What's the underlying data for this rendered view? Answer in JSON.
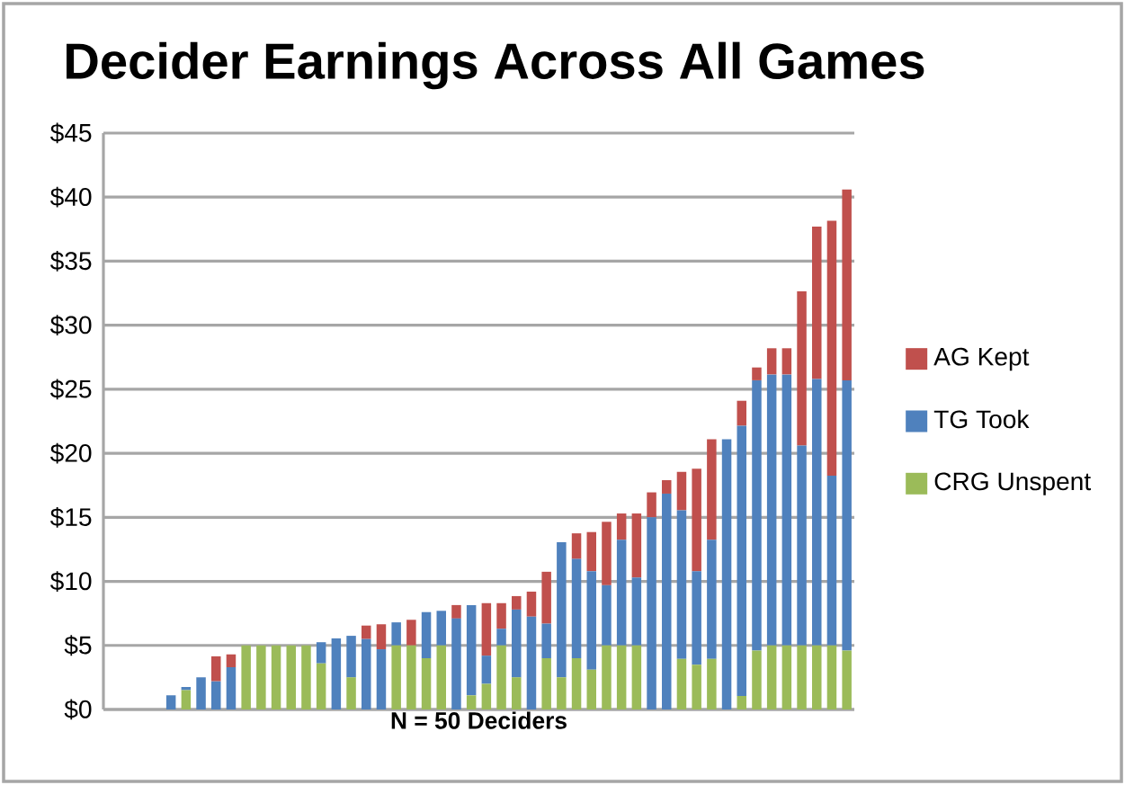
{
  "chart_data": {
    "type": "bar",
    "title": "Decider Earnings Across All Games",
    "xlabel": "N = 50 Deciders",
    "categories": [
      null,
      null,
      null,
      null,
      null,
      null,
      null,
      null,
      null,
      null,
      null,
      null,
      null,
      null,
      null,
      null,
      null,
      null,
      null,
      null,
      null,
      null,
      null,
      null,
      null,
      null,
      null,
      null,
      null,
      null,
      null,
      null,
      null,
      null,
      null,
      null,
      null,
      null,
      null,
      null,
      null,
      null,
      null,
      null,
      null,
      null,
      null,
      null,
      null,
      null
    ],
    "stacked": true,
    "series": [
      {
        "name": "CRG Unspent",
        "color": "#9bbb59",
        "values": [
          0,
          0,
          0,
          0,
          0,
          1.5,
          0,
          0,
          0,
          5,
          5,
          5,
          5,
          5,
          3.6,
          0,
          2.5,
          0,
          0,
          5,
          5,
          4,
          5,
          0,
          1.1,
          2,
          5,
          2.5,
          0,
          4,
          2.5,
          4,
          3.1,
          5,
          5,
          5,
          0,
          0,
          3.95,
          3.5,
          3.95,
          0,
          1.05,
          4.6,
          5,
          5,
          5,
          5,
          5,
          4.6
        ]
      },
      {
        "name": "TG Took",
        "color": "#4f81bd",
        "values": [
          0,
          0,
          0,
          0,
          1.1,
          0.25,
          2.5,
          2.2,
          3.3,
          0,
          0,
          0,
          0,
          0,
          1.65,
          5.55,
          3.25,
          5.5,
          4.7,
          1.8,
          0,
          3.6,
          2.7,
          7.1,
          7.05,
          2.2,
          1.3,
          5.3,
          7.25,
          2.7,
          10.55,
          7.75,
          7.7,
          4.7,
          8.25,
          5.3,
          15,
          16.85,
          11.6,
          7.3,
          9.3,
          21.1,
          21.1,
          21.1,
          21.15,
          21.15,
          15.6,
          20.8,
          13.25,
          21.1
        ]
      },
      {
        "name": "AG Kept",
        "color": "#c0504d",
        "values": [
          0,
          0,
          0,
          0,
          0,
          0,
          0,
          1.95,
          1,
          0,
          0,
          0,
          0,
          0,
          0,
          0,
          0,
          1.05,
          1.95,
          0,
          2,
          0,
          0,
          1.05,
          0,
          4.1,
          2,
          1.05,
          1.95,
          4.05,
          0,
          2,
          3.05,
          4.95,
          2.05,
          5,
          1.95,
          1.05,
          3,
          8,
          7.85,
          0,
          1.95,
          1,
          2.05,
          2.05,
          12.05,
          11.9,
          19.9,
          14.9
        ]
      }
    ],
    "ylim": [
      0,
      45
    ],
    "yticks": [
      {
        "value": 0,
        "label": "$0"
      },
      {
        "value": 5,
        "label": "$5"
      },
      {
        "value": 10,
        "label": "$10"
      },
      {
        "value": 15,
        "label": "$15"
      },
      {
        "value": 20,
        "label": "$20"
      },
      {
        "value": 25,
        "label": "$25"
      },
      {
        "value": 30,
        "label": "$30"
      },
      {
        "value": 35,
        "label": "$35"
      },
      {
        "value": 40,
        "label": "$40"
      },
      {
        "value": 45,
        "label": "$45"
      }
    ],
    "grid": "y",
    "legend": "right"
  }
}
